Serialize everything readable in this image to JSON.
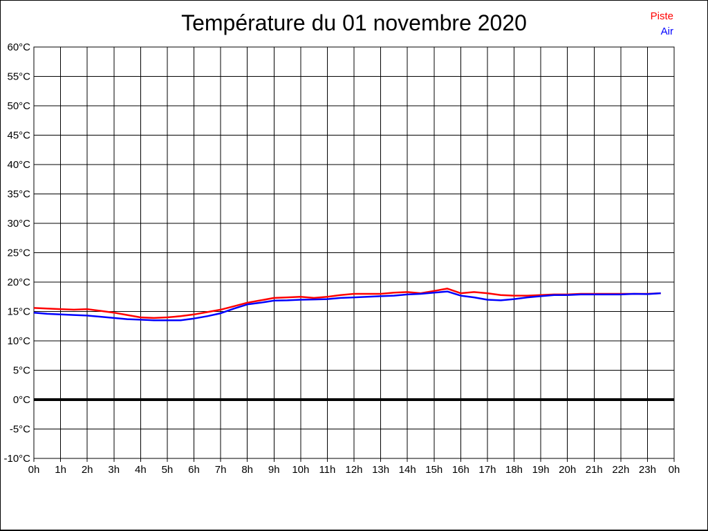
{
  "page": {
    "background": "#ffffff",
    "border_color": "#000000"
  },
  "chart_data": {
    "type": "line",
    "title": "Température du 01 novembre 2020",
    "xlabel": "",
    "ylabel": "",
    "xlim": [
      0,
      24
    ],
    "ylim": [
      -10,
      60
    ],
    "grid": true,
    "grid_color": "#000000",
    "legend_position": "top-right",
    "zero_line": {
      "value": 0,
      "color": "#000000",
      "width": 4
    },
    "x_ticks": {
      "values": [
        0,
        1,
        2,
        3,
        4,
        5,
        6,
        7,
        8,
        9,
        10,
        11,
        12,
        13,
        14,
        15,
        16,
        17,
        18,
        19,
        20,
        21,
        22,
        23,
        24
      ],
      "labels": [
        "0h",
        "1h",
        "2h",
        "3h",
        "4h",
        "5h",
        "6h",
        "7h",
        "8h",
        "9h",
        "10h",
        "11h",
        "12h",
        "13h",
        "14h",
        "15h",
        "16h",
        "17h",
        "18h",
        "19h",
        "20h",
        "21h",
        "22h",
        "23h",
        "0h"
      ]
    },
    "y_ticks": {
      "values": [
        60,
        55,
        50,
        45,
        40,
        35,
        30,
        25,
        20,
        15,
        10,
        5,
        0,
        -5,
        -10
      ],
      "labels": [
        "60°C",
        "55°C",
        "50°C",
        "45°C",
        "40°C",
        "35°C",
        "30°C",
        "25°C",
        "20°C",
        "15°C",
        "10°C",
        "5°C",
        "0°C",
        "-5°C",
        "-10°C"
      ]
    },
    "x": [
      0,
      0.5,
      1,
      1.5,
      2,
      2.5,
      3,
      3.5,
      4,
      4.5,
      5,
      5.5,
      6,
      6.5,
      7,
      7.5,
      8,
      8.5,
      9,
      9.5,
      10,
      10.5,
      11,
      11.5,
      12,
      12.5,
      13,
      13.5,
      14,
      14.5,
      15,
      15.5,
      16,
      16.5,
      17,
      17.5,
      18,
      18.5,
      19,
      19.5,
      20,
      20.5,
      21,
      21.5,
      22,
      22.5,
      23,
      23.5
    ],
    "series": [
      {
        "name": "Piste",
        "color": "#ff0000",
        "values": [
          15.6,
          15.5,
          15.4,
          15.3,
          15.4,
          15.1,
          14.8,
          14.4,
          14.0,
          13.9,
          14.0,
          14.2,
          14.5,
          14.9,
          15.3,
          15.9,
          16.5,
          16.9,
          17.3,
          17.4,
          17.5,
          17.3,
          17.5,
          17.8,
          18.0,
          18.0,
          18.0,
          18.2,
          18.3,
          18.1,
          18.5,
          18.9,
          18.1,
          18.3,
          18.1,
          17.8,
          17.7,
          17.7,
          17.8,
          17.9,
          17.9,
          18.0,
          18.0,
          18.0,
          18.0,
          18.0,
          18.0,
          18.1
        ]
      },
      {
        "name": "Air",
        "color": "#0000ff",
        "values": [
          14.8,
          14.6,
          14.5,
          14.4,
          14.3,
          14.1,
          13.9,
          13.7,
          13.6,
          13.5,
          13.5,
          13.5,
          13.8,
          14.2,
          14.7,
          15.5,
          16.2,
          16.5,
          16.85,
          16.9,
          17.0,
          17.05,
          17.1,
          17.3,
          17.4,
          17.5,
          17.6,
          17.7,
          17.9,
          18.0,
          18.2,
          18.4,
          17.7,
          17.4,
          17.0,
          16.9,
          17.1,
          17.4,
          17.6,
          17.8,
          17.8,
          17.9,
          17.9,
          17.9,
          17.9,
          18.0,
          17.95,
          18.1
        ]
      }
    ]
  }
}
